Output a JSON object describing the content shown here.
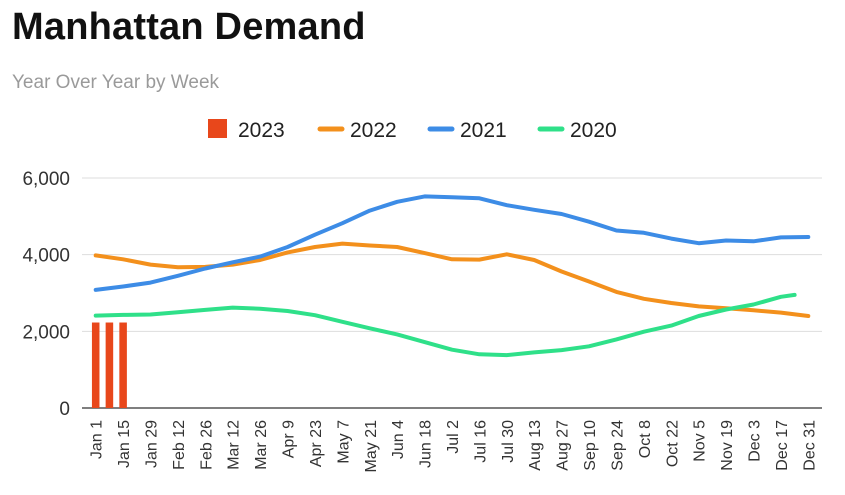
{
  "chart_data": {
    "type": "line",
    "title": "Manhattan Demand",
    "subtitle": "Year Over Year by Week",
    "xlabel": "",
    "ylabel": "",
    "ylim": [
      0,
      6000
    ],
    "yticks": [
      "0",
      "2,000",
      "4,000",
      "6,000"
    ],
    "ytick_values": [
      0,
      2000,
      4000,
      6000
    ],
    "categories": [
      "Jan 1",
      "Jan 15",
      "Jan 29",
      "Feb 12",
      "Feb 26",
      "Mar 12",
      "Mar 26",
      "Apr 9",
      "Apr 23",
      "May 7",
      "May 21",
      "Jun 4",
      "Jun 18",
      "Jul 2",
      "Jul 16",
      "Jul 30",
      "Aug 13",
      "Aug 27",
      "Sep 10",
      "Sep 24",
      "Oct 8",
      "Oct 22",
      "Nov 5",
      "Nov 19",
      "Dec 3",
      "Dec 17",
      "Dec 31"
    ],
    "grid": true,
    "legend_position": "top",
    "series": [
      {
        "name": "2023",
        "type": "bar",
        "color": "#e8471b",
        "x": [
          "Jan 1",
          "Jan 8",
          "Jan 15"
        ],
        "values": [
          2230,
          2230,
          2230
        ]
      },
      {
        "name": "2022",
        "type": "line",
        "color": "#f3901c",
        "values": [
          3980,
          3880,
          3740,
          3670,
          3680,
          3740,
          3860,
          4060,
          4200,
          4290,
          4240,
          4200,
          4040,
          3880,
          3870,
          4010,
          3860,
          3560,
          3300,
          3030,
          2850,
          2740,
          2650,
          2600,
          2550,
          2490,
          2400
        ]
      },
      {
        "name": "2021",
        "type": "line",
        "color": "#3d8ce6",
        "values": [
          3080,
          3170,
          3270,
          3450,
          3640,
          3800,
          3950,
          4200,
          4520,
          4820,
          5150,
          5380,
          5520,
          5500,
          5470,
          5290,
          5170,
          5060,
          4860,
          4630,
          4570,
          4420,
          4300,
          4370,
          4350,
          4450,
          4460
        ]
      },
      {
        "name": "2020",
        "type": "line",
        "color": "#2fe089",
        "values": [
          2410,
          2430,
          2440,
          2500,
          2560,
          2620,
          2590,
          2530,
          2420,
          2250,
          2080,
          1920,
          1720,
          1520,
          1400,
          1380,
          1450,
          1510,
          1610,
          1790,
          1990,
          2150,
          2400,
          2570,
          2700,
          2900,
          2950
        ],
        "x_end": "Dec 24"
      }
    ]
  }
}
